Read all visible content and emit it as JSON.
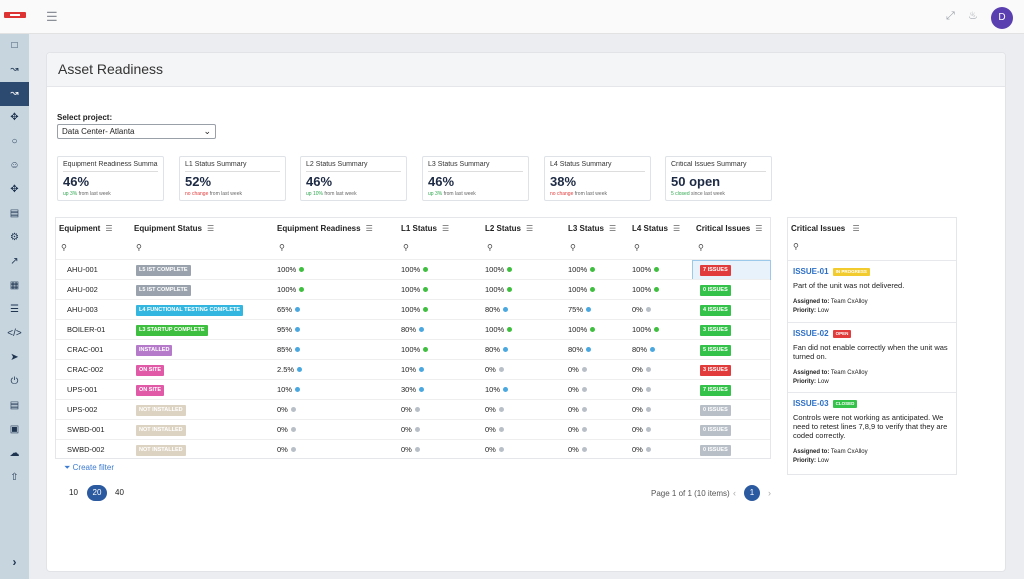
{
  "topbar": {
    "avatar_initial": "D"
  },
  "page": {
    "title": "Asset Readiness"
  },
  "project": {
    "label": "Select project:",
    "value": "Data Center- Atlanta"
  },
  "summary": [
    {
      "title": "Equipment Readiness Summary",
      "value": "46%",
      "change": "up 3%",
      "change_color": "#2fa84f",
      "suffix": " from last week"
    },
    {
      "title": "L1 Status Summary",
      "value": "52%",
      "change": "no change",
      "change_color": "#e23b3b",
      "suffix": " from last week"
    },
    {
      "title": "L2 Status Summary",
      "value": "46%",
      "change": "up 10%",
      "change_color": "#2fa84f",
      "suffix": " from last week"
    },
    {
      "title": "L3 Status Summary",
      "value": "46%",
      "change": "up 3%",
      "change_color": "#2fa84f",
      "suffix": " from last week"
    },
    {
      "title": "L4 Status Summary",
      "value": "38%",
      "change": "no change",
      "change_color": "#e23b3b",
      "suffix": " from last week"
    },
    {
      "title": "Critical Issues Summary",
      "value": "50 open",
      "change": "5 closed",
      "change_color": "#2fa84f",
      "suffix": " since last week"
    }
  ],
  "table": {
    "columns": [
      "Equipment",
      "Equipment Status",
      "Equipment Readiness",
      "L1 Status",
      "L2 Status",
      "L3 Status",
      "L4 Status",
      "Critical Issues"
    ],
    "rows": [
      {
        "equipment": "AHU-001",
        "status": "L5 IST COMPLETE",
        "status_color": "#9aa3ad",
        "readiness": "100%",
        "l1": "100%",
        "l2": "100%",
        "l3": "100%",
        "l4": "100%",
        "issues": "7 ISSUES",
        "issues_color": "#e23b3b"
      },
      {
        "equipment": "AHU-002",
        "status": "L5 IST COMPLETE",
        "status_color": "#9aa3ad",
        "readiness": "100%",
        "l1": "100%",
        "l2": "100%",
        "l3": "100%",
        "l4": "100%",
        "issues": "0 ISSUES",
        "issues_color": "#35c24a"
      },
      {
        "equipment": "AHU-003",
        "status": "L4 FUNCTIONAL TESTING COMPLETE",
        "status_color": "#33b7e0",
        "readiness": "65%",
        "l1": "100%",
        "l2": "80%",
        "l3": "75%",
        "l4": "0%",
        "issues": "4 ISSUES",
        "issues_color": "#35c24a"
      },
      {
        "equipment": "BOILER-01",
        "status": "L3 STARTUP COMPLETE",
        "status_color": "#3fbf3f",
        "readiness": "95%",
        "l1": "80%",
        "l2": "100%",
        "l3": "100%",
        "l4": "100%",
        "issues": "3 ISSUES",
        "issues_color": "#35c24a"
      },
      {
        "equipment": "CRAC-001",
        "status": "INSTALLED",
        "status_color": "#b57ac9",
        "readiness": "85%",
        "l1": "100%",
        "l2": "80%",
        "l3": "80%",
        "l4": "80%",
        "issues": "5 ISSUES",
        "issues_color": "#35c24a"
      },
      {
        "equipment": "CRAC-002",
        "status": "ON SITE",
        "status_color": "#e05aa8",
        "readiness": "2.5%",
        "l1": "10%",
        "l2": "0%",
        "l3": "0%",
        "l4": "0%",
        "issues": "3 ISSUES",
        "issues_color": "#e23b3b"
      },
      {
        "equipment": "UPS-001",
        "status": "ON SITE",
        "status_color": "#e05aa8",
        "readiness": "10%",
        "l1": "30%",
        "l2": "10%",
        "l3": "0%",
        "l4": "0%",
        "issues": "7 ISSUES",
        "issues_color": "#35c24a"
      },
      {
        "equipment": "UPS-002",
        "status": "NOT INSTALLED",
        "status_color": "#ddd3c2",
        "readiness": "0%",
        "l1": "0%",
        "l2": "0%",
        "l3": "0%",
        "l4": "0%",
        "issues": "0 ISSUES",
        "issues_color": "#b8bfc7"
      },
      {
        "equipment": "SWBD-001",
        "status": "NOT INSTALLED",
        "status_color": "#ddd3c2",
        "readiness": "0%",
        "l1": "0%",
        "l2": "0%",
        "l3": "0%",
        "l4": "0%",
        "issues": "0 ISSUES",
        "issues_color": "#b8bfc7"
      },
      {
        "equipment": "SWBD-002",
        "status": "NOT INSTALLED",
        "status_color": "#ddd3c2",
        "readiness": "0%",
        "l1": "0%",
        "l2": "0%",
        "l3": "0%",
        "l4": "0%",
        "issues": "0 ISSUES",
        "issues_color": "#b8bfc7"
      }
    ]
  },
  "filter": {
    "create_label": "Create filter"
  },
  "pagination": {
    "sizes": [
      "10",
      "20",
      "40"
    ],
    "selected_size": "20",
    "info": "Page 1 of 1 (10 items)",
    "current": "1"
  },
  "issues_panel": {
    "title": "Critical Issues",
    "items": [
      {
        "id": "ISSUE-01",
        "state": "IN PROGRESS",
        "state_color": "#f2cb2e",
        "description": "Part of the unit was not delivered.",
        "assigned_label": "Assigned to:",
        "assigned": " Team CxAlloy",
        "priority_label": "Priority:",
        "priority": " Low"
      },
      {
        "id": "ISSUE-02",
        "state": "OPEN",
        "state_color": "#e23b3b",
        "description": "Fan did not enable correctly when the unit was turned on.",
        "assigned_label": "Assigned to:",
        "assigned": " Team CxAlloy",
        "priority_label": "Priority:",
        "priority": " Low"
      },
      {
        "id": "ISSUE-03",
        "state": "CLOSED",
        "state_color": "#35c24a",
        "description": "Controls were not working as anticipated. We need to retest lines 7,8,9 to verify that they are coded correctly.",
        "assigned_label": "Assigned to:",
        "assigned": " Team CxAlloy",
        "priority_label": "Priority:",
        "priority": " Low"
      }
    ]
  }
}
